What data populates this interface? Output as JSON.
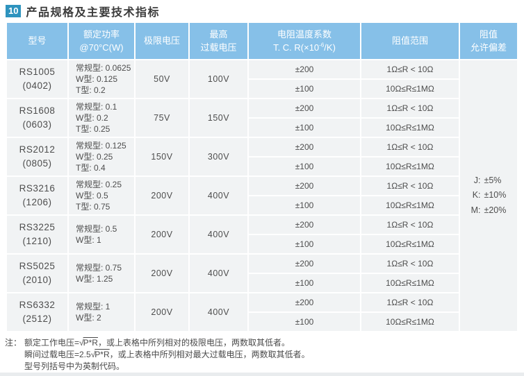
{
  "page": {
    "badge": "10",
    "title": "产品规格及主要技术指标"
  },
  "table": {
    "headers": {
      "model": "型号",
      "power_line1": "额定功率",
      "power_line2": "@70°C(W)",
      "limit_voltage": "极限电压",
      "overload_line1": "最高",
      "overload_line2": "过载电压",
      "tcr_line1": "电阻温度系数",
      "tcr_prefix": "T. C. R(×10",
      "tcr_sup": "-6",
      "tcr_suffix": "/K)",
      "range": "阻值范围",
      "tolerance_line1": "阻值",
      "tolerance_line2": "允许偏差"
    },
    "rows": [
      {
        "model": "RS1005",
        "code": "(0402)",
        "power": [
          "常规型: 0.0625",
          "W型: 0.125",
          "T型: 0.2"
        ],
        "limit_voltage": "50V",
        "overload_voltage": "100V",
        "tcr": [
          "±200",
          "±100"
        ],
        "range": [
          "1Ω≤R < 10Ω",
          "10Ω≤R≤1MΩ"
        ]
      },
      {
        "model": "RS1608",
        "code": "(0603)",
        "power": [
          "常规型: 0.1",
          "W型: 0.2",
          "T型: 0.25"
        ],
        "limit_voltage": "75V",
        "overload_voltage": "150V",
        "tcr": [
          "±200",
          "±100"
        ],
        "range": [
          "1Ω≤R < 10Ω",
          "10Ω≤R≤1MΩ"
        ]
      },
      {
        "model": "RS2012",
        "code": "(0805)",
        "power": [
          "常规型: 0.125",
          "W型: 0.25",
          "T型: 0.4"
        ],
        "limit_voltage": "150V",
        "overload_voltage": "300V",
        "tcr": [
          "±200",
          "±100"
        ],
        "range": [
          "1Ω≤R < 10Ω",
          "10Ω≤R≤1MΩ"
        ]
      },
      {
        "model": "RS3216",
        "code": "(1206)",
        "power": [
          "常规型: 0.25",
          "W型: 0.5",
          "T型: 0.75"
        ],
        "limit_voltage": "200V",
        "overload_voltage": "400V",
        "tcr": [
          "±200",
          "±100"
        ],
        "range": [
          "1Ω≤R < 10Ω",
          "10Ω≤R≤1MΩ"
        ]
      },
      {
        "model": "RS3225",
        "code": "(1210)",
        "power": [
          "常规型: 0.5",
          "W型: 1"
        ],
        "limit_voltage": "200V",
        "overload_voltage": "400V",
        "tcr": [
          "±200",
          "±100"
        ],
        "range": [
          "1Ω≤R < 10Ω",
          "10Ω≤R≤1MΩ"
        ]
      },
      {
        "model": "RS5025",
        "code": "(2010)",
        "power": [
          "常规型: 0.75",
          "W型: 1.25"
        ],
        "limit_voltage": "200V",
        "overload_voltage": "400V",
        "tcr": [
          "±200",
          "±100"
        ],
        "range": [
          "1Ω≤R < 10Ω",
          "10Ω≤R≤1MΩ"
        ]
      },
      {
        "model": "RS6332",
        "code": "(2512)",
        "power": [
          "常规型: 1",
          "W型: 2"
        ],
        "limit_voltage": "200V",
        "overload_voltage": "400V",
        "tcr": [
          "±200",
          "±100"
        ],
        "range": [
          "1Ω≤R < 10Ω",
          "10Ω≤R≤1MΩ"
        ]
      }
    ],
    "tolerance": [
      {
        "key": "J:",
        "val": "±5%"
      },
      {
        "key": "K:",
        "val": "±10%"
      },
      {
        "key": "M:",
        "val": "±20%"
      }
    ]
  },
  "notes": {
    "label": "注：",
    "sqrt_sign": "√",
    "line1": {
      "prefix": "额定工作电压=",
      "sqrt": "P*R",
      "suffix": "，或上表格中所列相对的极限电压，两数取其低者。"
    },
    "line2": {
      "prefix": "瞬间过载电压=2.5",
      "sqrt": "P*R",
      "suffix": "，或上表格中所列相对最大过载电压，两数取其低者。"
    },
    "line3": "型号列括号中为英制代码。"
  },
  "colors": {
    "header_blue": "#86c0e8",
    "badge_blue": "#2e93be",
    "cell_gray": "#f1f3f4",
    "text_gray": "#4d4d4d"
  }
}
